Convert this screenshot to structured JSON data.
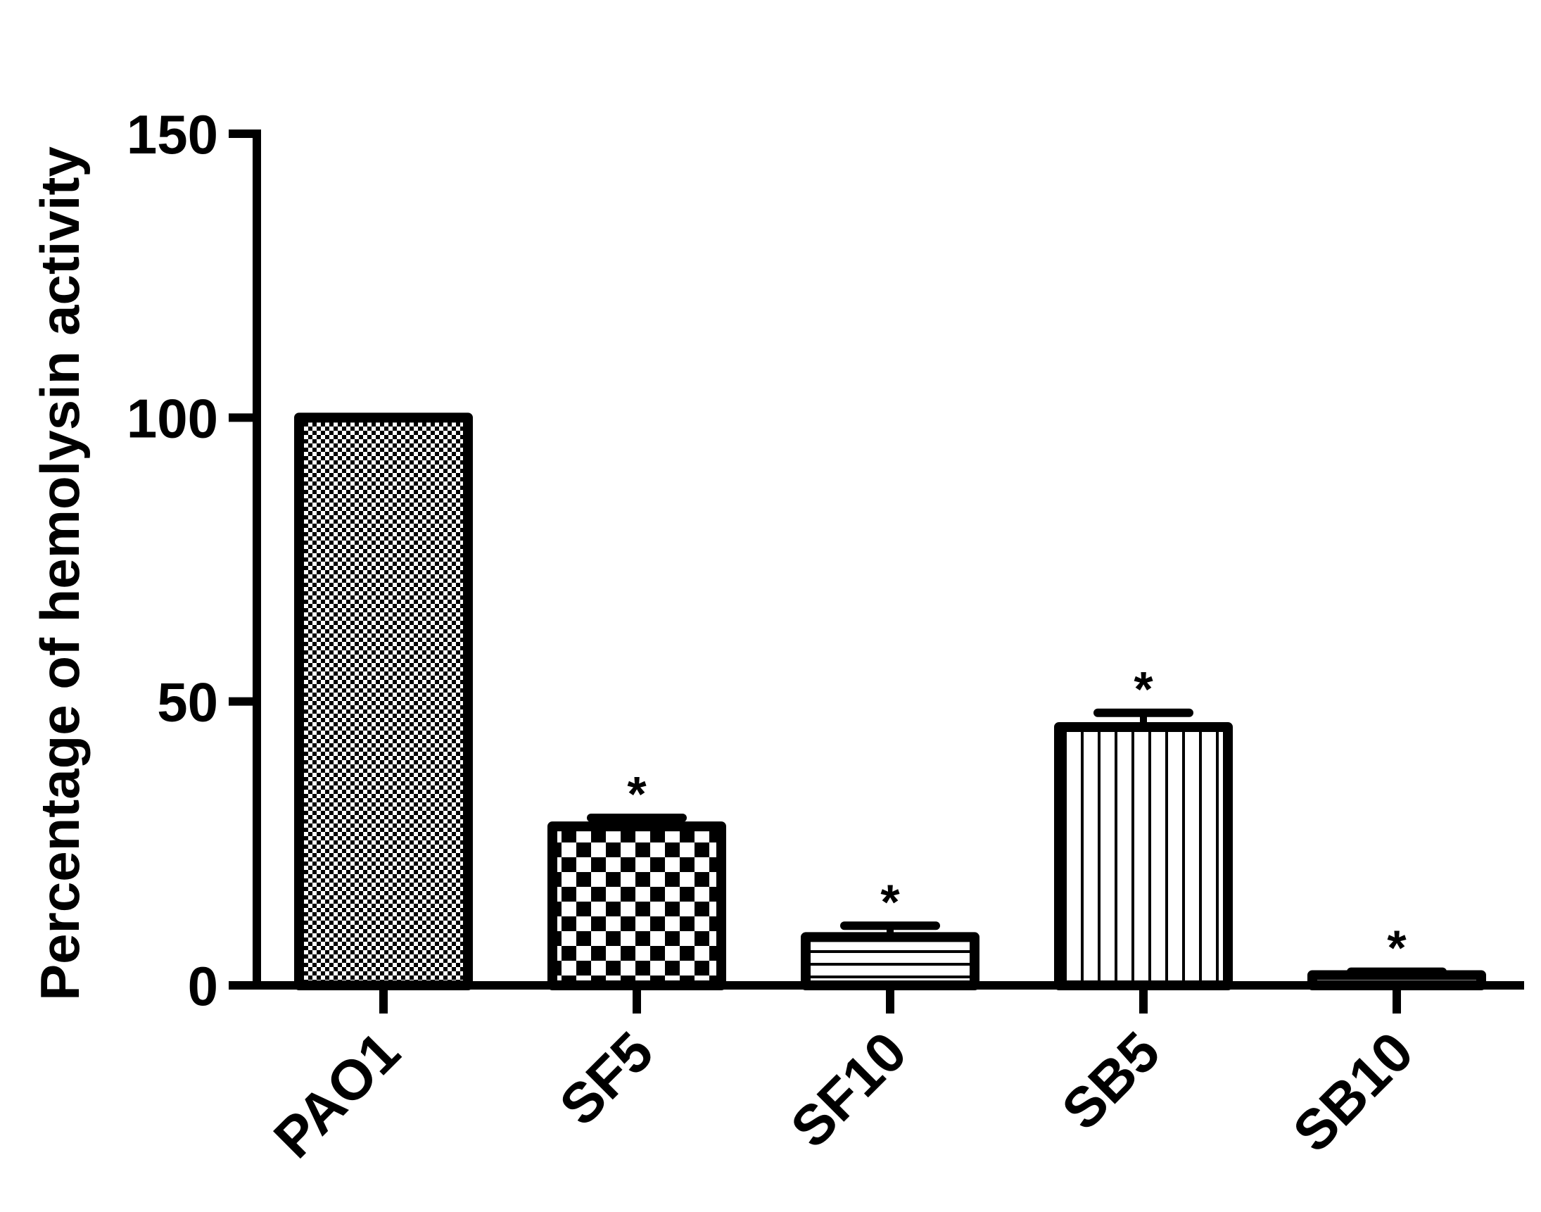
{
  "chart_data": {
    "type": "bar",
    "ylabel": "Percentage of hemolysin activity",
    "xlabel": "",
    "title": "",
    "ylim": [
      0,
      150
    ],
    "yticks": [
      0,
      50,
      100,
      150
    ],
    "ytick_labels": [
      "0",
      "50",
      "100",
      "150"
    ],
    "categories": [
      "PAO1",
      "SF5",
      "SF10",
      "SB5",
      "SB10"
    ],
    "values": [
      100,
      28,
      8.5,
      45.5,
      1.8
    ],
    "errors": [
      0,
      1.5,
      2,
      2.5,
      0.6
    ],
    "significance": [
      "",
      "*",
      "*",
      "*",
      "*"
    ],
    "fill_patterns": [
      "fine-checker",
      "coarse-checker",
      "horizontal-lines",
      "vertical-lines",
      "solid-white"
    ],
    "grid": false,
    "legend": "none"
  },
  "colors": {
    "ink": "#000000",
    "background": "#ffffff"
  }
}
